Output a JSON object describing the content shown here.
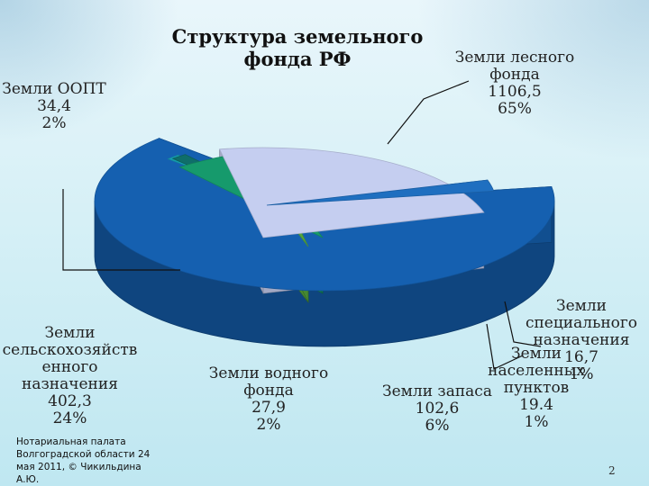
{
  "chart_data": {
    "type": "pie",
    "title": "Структура земельного фонда РФ",
    "slices": [
      {
        "name_lines": [
          "Земли лесного",
          "фонда"
        ],
        "value": "1106,5",
        "percent": "65%",
        "value_num": 1106.5,
        "pct_num": 65,
        "color": "#1560b0"
      },
      {
        "name_lines": [
          "Земли",
          "специального",
          "назначения"
        ],
        "value": "16,7",
        "percent": "1%",
        "value_num": 16.7,
        "pct_num": 1,
        "color": "#16a0b4"
      },
      {
        "name_lines": [
          "Земли",
          "населенных",
          "пунктов"
        ],
        "value": "19.4",
        "percent": "1%",
        "value_num": 19.4,
        "pct_num": 1,
        "color": "#0f6e6a"
      },
      {
        "name_lines": [
          "Земли запаса"
        ],
        "value": "102,6",
        "percent": "6%",
        "value_num": 102.6,
        "pct_num": 6,
        "color": "#169a6c"
      },
      {
        "name_lines": [
          "Земли водного",
          "фонда"
        ],
        "value": "27,9",
        "percent": "2%",
        "value_num": 27.9,
        "pct_num": 2,
        "color": "#55a63e"
      },
      {
        "name_lines": [
          "Земли",
          "сельскохозяйств",
          "енного",
          "назначения"
        ],
        "value": "402,3",
        "percent": "24%",
        "value_num": 402.3,
        "pct_num": 24,
        "color": "#c5cef0"
      },
      {
        "name_lines": [
          "Земли ООПТ"
        ],
        "value": "34,4",
        "percent": "2%",
        "value_num": 34.4,
        "pct_num": 2,
        "color": "#1f6fc0"
      }
    ]
  },
  "footer": {
    "lines": [
      "Нотариальная палата",
      "Волгоградской области 24",
      "мая 2011, © Чикильдина",
      "А.Ю."
    ],
    "page_number": "2"
  }
}
